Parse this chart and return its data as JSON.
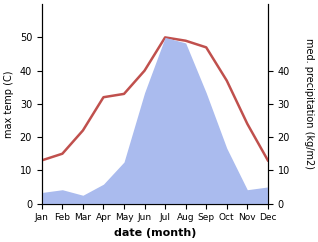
{
  "months": [
    1,
    2,
    3,
    4,
    5,
    6,
    7,
    8,
    9,
    10,
    11,
    12
  ],
  "month_labels": [
    "Jan",
    "Feb",
    "Mar",
    "Apr",
    "May",
    "Jun",
    "Jul",
    "Aug",
    "Sep",
    "Oct",
    "Nov",
    "Dec"
  ],
  "temperature": [
    13,
    15,
    22,
    32,
    33,
    40,
    50,
    49,
    47,
    37,
    24,
    13
  ],
  "precipitation": [
    4,
    5,
    3,
    7,
    15,
    40,
    60,
    58,
    40,
    20,
    5,
    6
  ],
  "temp_color": "#c0504d",
  "precip_fill_color": "#aabbee",
  "temp_ylim": [
    0,
    60
  ],
  "precip_ylim": [
    0,
    72
  ],
  "temp_yticks": [
    0,
    10,
    20,
    30,
    40,
    50
  ],
  "precip_yticks": [
    0,
    10,
    20,
    30,
    40
  ],
  "precip_yticklabels": [
    "0",
    "10",
    "20",
    "30",
    "40"
  ],
  "xlabel": "date (month)",
  "ylabel_left": "max temp (C)",
  "ylabel_right": "med. precipitation (kg/m2)",
  "background_color": "#ffffff",
  "line_width": 1.8,
  "tick_fontsize": 7,
  "label_fontsize": 7,
  "xlabel_fontsize": 8
}
